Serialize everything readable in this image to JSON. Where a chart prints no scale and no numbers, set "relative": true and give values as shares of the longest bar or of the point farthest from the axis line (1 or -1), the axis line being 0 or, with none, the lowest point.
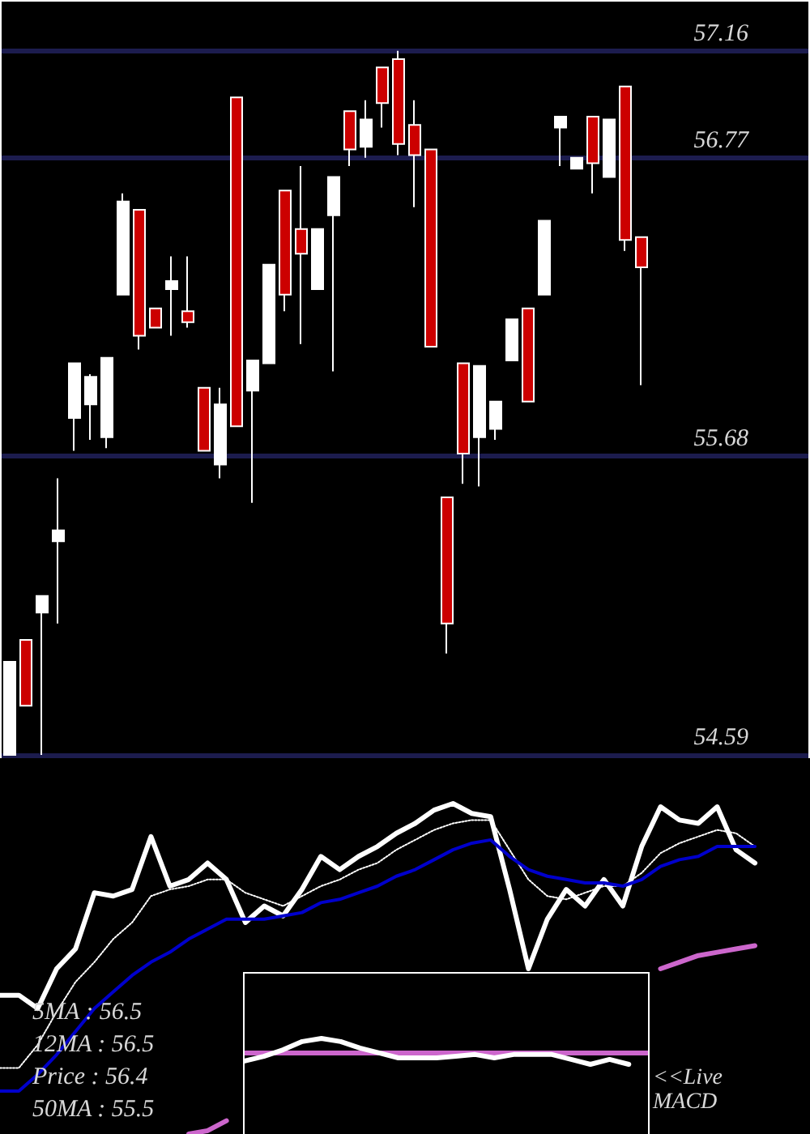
{
  "chart_data": [
    {
      "type": "candlestick",
      "categories": [
        null,
        null,
        null,
        null,
        null,
        null,
        null,
        null,
        null,
        null,
        null,
        null,
        null,
        null,
        null,
        null,
        null,
        null,
        null,
        null,
        null,
        null,
        null,
        null,
        null,
        null,
        null,
        null,
        null,
        null,
        null,
        null,
        null,
        null,
        null,
        null,
        null,
        null,
        null,
        null
      ],
      "ohlc": [
        [
          54.59,
          54.93,
          54.59,
          54.93
        ],
        [
          55.01,
          55.01,
          54.77,
          54.77
        ],
        [
          55.11,
          55.17,
          54.59,
          55.17
        ],
        [
          55.37,
          55.6,
          55.07,
          55.41
        ],
        [
          55.82,
          56.02,
          55.7,
          56.02
        ],
        [
          55.87,
          55.98,
          55.74,
          55.97
        ],
        [
          55.75,
          56.04,
          55.71,
          56.04
        ],
        [
          56.27,
          56.64,
          56.27,
          56.61
        ],
        [
          56.58,
          56.58,
          56.07,
          56.12
        ],
        [
          56.22,
          56.22,
          56.15,
          56.15
        ],
        [
          56.29,
          56.41,
          56.12,
          56.32
        ],
        [
          56.21,
          56.41,
          56.15,
          56.17
        ],
        [
          55.93,
          55.93,
          55.7,
          55.7
        ],
        [
          55.65,
          55.93,
          55.6,
          55.87
        ],
        [
          56.99,
          56.99,
          55.79,
          55.79
        ],
        [
          55.92,
          56.03,
          55.51,
          56.03
        ],
        [
          56.02,
          56.38,
          56.02,
          56.38
        ],
        [
          56.65,
          56.65,
          56.21,
          56.27
        ],
        [
          56.51,
          56.74,
          56.09,
          56.42
        ],
        [
          56.29,
          56.51,
          56.29,
          56.51
        ],
        [
          56.56,
          56.7,
          55.99,
          56.7
        ],
        [
          56.94,
          56.94,
          56.74,
          56.8
        ],
        [
          56.81,
          56.98,
          56.77,
          56.91
        ],
        [
          57.1,
          57.1,
          56.88,
          56.97
        ],
        [
          57.13,
          57.16,
          56.78,
          56.82
        ],
        [
          56.89,
          56.98,
          56.59,
          56.78
        ],
        [
          56.8,
          56.8,
          56.08,
          56.08
        ],
        [
          55.53,
          55.53,
          54.96,
          55.07
        ],
        [
          56.02,
          56.02,
          55.58,
          55.69
        ],
        [
          55.75,
          56.01,
          55.57,
          56.01
        ],
        [
          55.78,
          55.88,
          55.74,
          55.88
        ],
        [
          56.03,
          56.18,
          56.03,
          56.18
        ],
        [
          56.22,
          56.22,
          55.88,
          55.88
        ],
        [
          56.27,
          56.54,
          56.27,
          56.54
        ],
        [
          56.88,
          56.92,
          56.74,
          56.92
        ],
        [
          56.73,
          56.77,
          56.73,
          56.77
        ],
        [
          56.92,
          56.92,
          56.64,
          56.75
        ],
        [
          56.7,
          56.91,
          56.7,
          56.91
        ],
        [
          57.03,
          57.03,
          56.43,
          56.47
        ],
        [
          56.48,
          56.48,
          55.94,
          56.37
        ]
      ],
      "colors": [
        "#ffffff",
        "#cc0000",
        "#ffffff",
        "#ffffff",
        "#ffffff",
        "#ffffff",
        "#ffffff",
        "#ffffff",
        "#cc0000",
        "#cc0000",
        "#ffffff",
        "#cc0000",
        "#cc0000",
        "#ffffff",
        "#cc0000",
        "#ffffff",
        "#ffffff",
        "#cc0000",
        "#cc0000",
        "#ffffff",
        "#ffffff",
        "#cc0000",
        "#ffffff",
        "#cc0000",
        "#cc0000",
        "#cc0000",
        "#cc0000",
        "#cc0000",
        "#cc0000",
        "#ffffff",
        "#ffffff",
        "#ffffff",
        "#cc0000",
        "#ffffff",
        "#ffffff",
        "#ffffff",
        "#cc0000",
        "#ffffff",
        "#cc0000",
        "#cc0000"
      ],
      "ylim": [
        54.59,
        57.34
      ],
      "yticks": [
        54.59,
        55.68,
        56.77,
        57.16
      ],
      "grid": "y",
      "tick_labels": "y"
    },
    {
      "type": "line",
      "relative": true,
      "tick_labels": false,
      "categories": [
        null,
        null,
        null,
        null,
        null,
        null,
        null,
        null,
        null,
        null,
        null,
        null,
        null,
        null,
        null,
        null,
        null,
        null,
        null,
        null,
        null,
        null,
        null,
        null,
        null,
        null,
        null,
        null,
        null,
        null,
        null,
        null,
        null,
        null,
        null,
        null,
        null,
        null,
        null,
        null,
        null
      ],
      "series": [
        {
          "color": "#ffffff",
          "values": [
            0.42,
            0.42,
            0.38,
            0.5,
            0.56,
            0.73,
            0.72,
            0.74,
            0.9,
            0.75,
            0.77,
            0.82,
            0.77,
            0.64,
            0.69,
            0.66,
            0.74,
            0.84,
            0.8,
            0.84,
            0.87,
            0.91,
            0.94,
            0.98,
            1.0,
            0.97,
            0.96,
            0.74,
            0.5,
            0.65,
            0.74,
            0.69,
            0.77,
            0.69,
            0.87,
            0.99,
            0.95,
            0.94,
            0.99,
            0.86,
            0.82
          ]
        },
        {
          "color": "#ffffff",
          "line_style": "dotted",
          "values": [
            0.2,
            0.2,
            0.27,
            0.37,
            0.46,
            0.52,
            0.59,
            0.64,
            0.72,
            0.74,
            0.75,
            0.77,
            0.77,
            0.73,
            0.71,
            0.69,
            0.72,
            0.75,
            0.77,
            0.8,
            0.82,
            0.86,
            0.89,
            0.92,
            0.94,
            0.95,
            0.95,
            0.86,
            0.77,
            0.72,
            0.71,
            0.73,
            0.75,
            0.75,
            0.79,
            0.85,
            0.88,
            0.9,
            0.92,
            0.91,
            0.87
          ]
        },
        {
          "color": "#0000cc",
          "values": [
            0.13,
            0.13,
            0.18,
            0.24,
            0.31,
            0.38,
            0.43,
            0.48,
            0.52,
            0.55,
            0.59,
            0.62,
            0.65,
            0.65,
            0.65,
            0.66,
            0.67,
            0.7,
            0.71,
            0.73,
            0.75,
            0.78,
            0.8,
            0.83,
            0.86,
            0.88,
            0.89,
            0.84,
            0.8,
            0.78,
            0.77,
            0.76,
            0.76,
            0.75,
            0.77,
            0.81,
            0.83,
            0.84,
            0.87,
            0.87,
            0.87
          ]
        },
        {
          "color": "#cc66cc",
          "values": [
            null,
            null,
            null,
            null,
            null,
            null,
            null,
            null,
            null,
            null,
            0.0,
            0.01,
            0.04,
            null,
            null,
            null,
            null,
            null,
            null,
            null,
            null,
            null,
            null,
            null,
            null,
            null,
            null,
            null,
            null,
            null,
            null,
            null,
            null,
            null,
            null,
            0.5,
            0.52,
            0.54,
            0.55,
            0.56,
            0.57
          ]
        }
      ],
      "annotations": [
        "5MA : 56.5",
        "12MA : 56.5",
        "Price : 56.4",
        "50MA : 55.5"
      ]
    },
    {
      "type": "line",
      "relative": true,
      "tick_labels": false,
      "categories": [
        null,
        null,
        null,
        null,
        null,
        null,
        null,
        null,
        null,
        null,
        null,
        null,
        null,
        null,
        null,
        null,
        null,
        null,
        null,
        null,
        null,
        null
      ],
      "series": [
        {
          "color": "#cc66cc",
          "values": [
            0.44,
            0.44,
            0.44,
            0.44,
            0.44,
            0.44,
            0.44,
            0.44,
            0.44,
            0.44,
            0.44,
            0.44,
            0.44,
            0.44,
            0.44,
            0.44,
            0.44,
            0.44,
            0.44,
            0.44,
            0.44,
            0.44
          ]
        },
        {
          "color": "#ffffff",
          "values": [
            0.13,
            0.31,
            0.56,
            0.88,
            1.0,
            0.88,
            0.63,
            0.44,
            0.25,
            0.25,
            0.25,
            0.31,
            0.38,
            0.25,
            0.38,
            0.38,
            0.38,
            0.19,
            0.0,
            0.19,
            0.0,
            null
          ]
        }
      ],
      "annotations": [
        "<<Live MACD"
      ]
    }
  ]
}
